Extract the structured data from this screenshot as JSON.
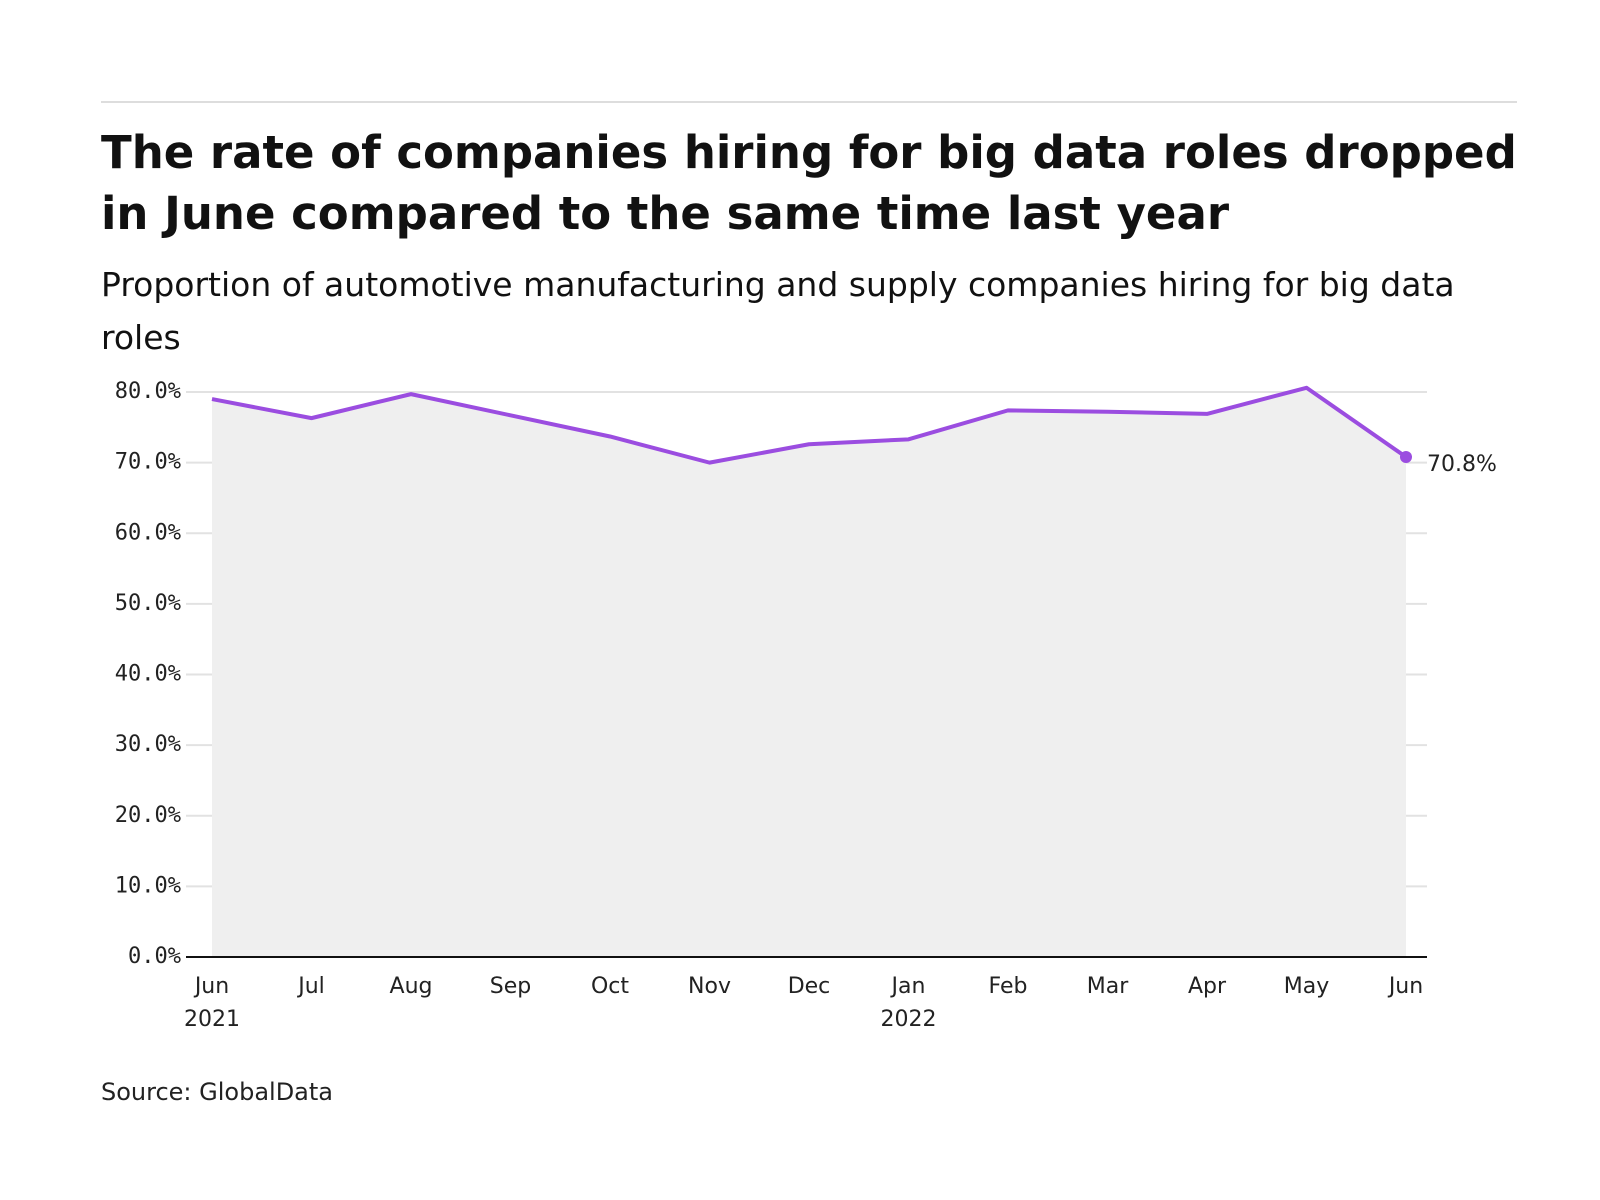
{
  "chart_data": {
    "type": "line",
    "title": "The rate of companies hiring for big data roles dropped in June compared to the same time last year",
    "subtitle": "Proportion of automotive manufacturing and supply companies hiring for big data roles",
    "source": "Source: GlobalData",
    "categories": [
      "Jun\n2021",
      "Jul",
      "Aug",
      "Sep",
      "Oct",
      "Nov",
      "Dec",
      "Jan\n2022",
      "Feb",
      "Mar",
      "Apr",
      "May",
      "Jun"
    ],
    "series": [
      {
        "name": "Proportion of companies hiring for big data roles",
        "color": "#9b4de0",
        "values": [
          79.0,
          76.3,
          79.7,
          76.7,
          73.7,
          70.0,
          72.6,
          73.3,
          77.4,
          77.2,
          76.9,
          80.6,
          70.8
        ],
        "value_labels": [
          null,
          null,
          null,
          null,
          null,
          null,
          null,
          null,
          null,
          null,
          null,
          null,
          "70.8%"
        ]
      }
    ],
    "ylim": [
      0,
      80
    ],
    "yticks": [
      {
        "value": 0,
        "label": "0.0%"
      },
      {
        "value": 10,
        "label": "10.0%"
      },
      {
        "value": 20,
        "label": "20.0%"
      },
      {
        "value": 30,
        "label": "30.0%"
      },
      {
        "value": 40,
        "label": "40.0%"
      },
      {
        "value": 50,
        "label": "50.0%"
      },
      {
        "value": 60,
        "label": "60.0%"
      },
      {
        "value": 70,
        "label": "70.0%"
      },
      {
        "value": 80,
        "label": "80.0%"
      }
    ],
    "grid": true,
    "area_color": "#efefef"
  }
}
